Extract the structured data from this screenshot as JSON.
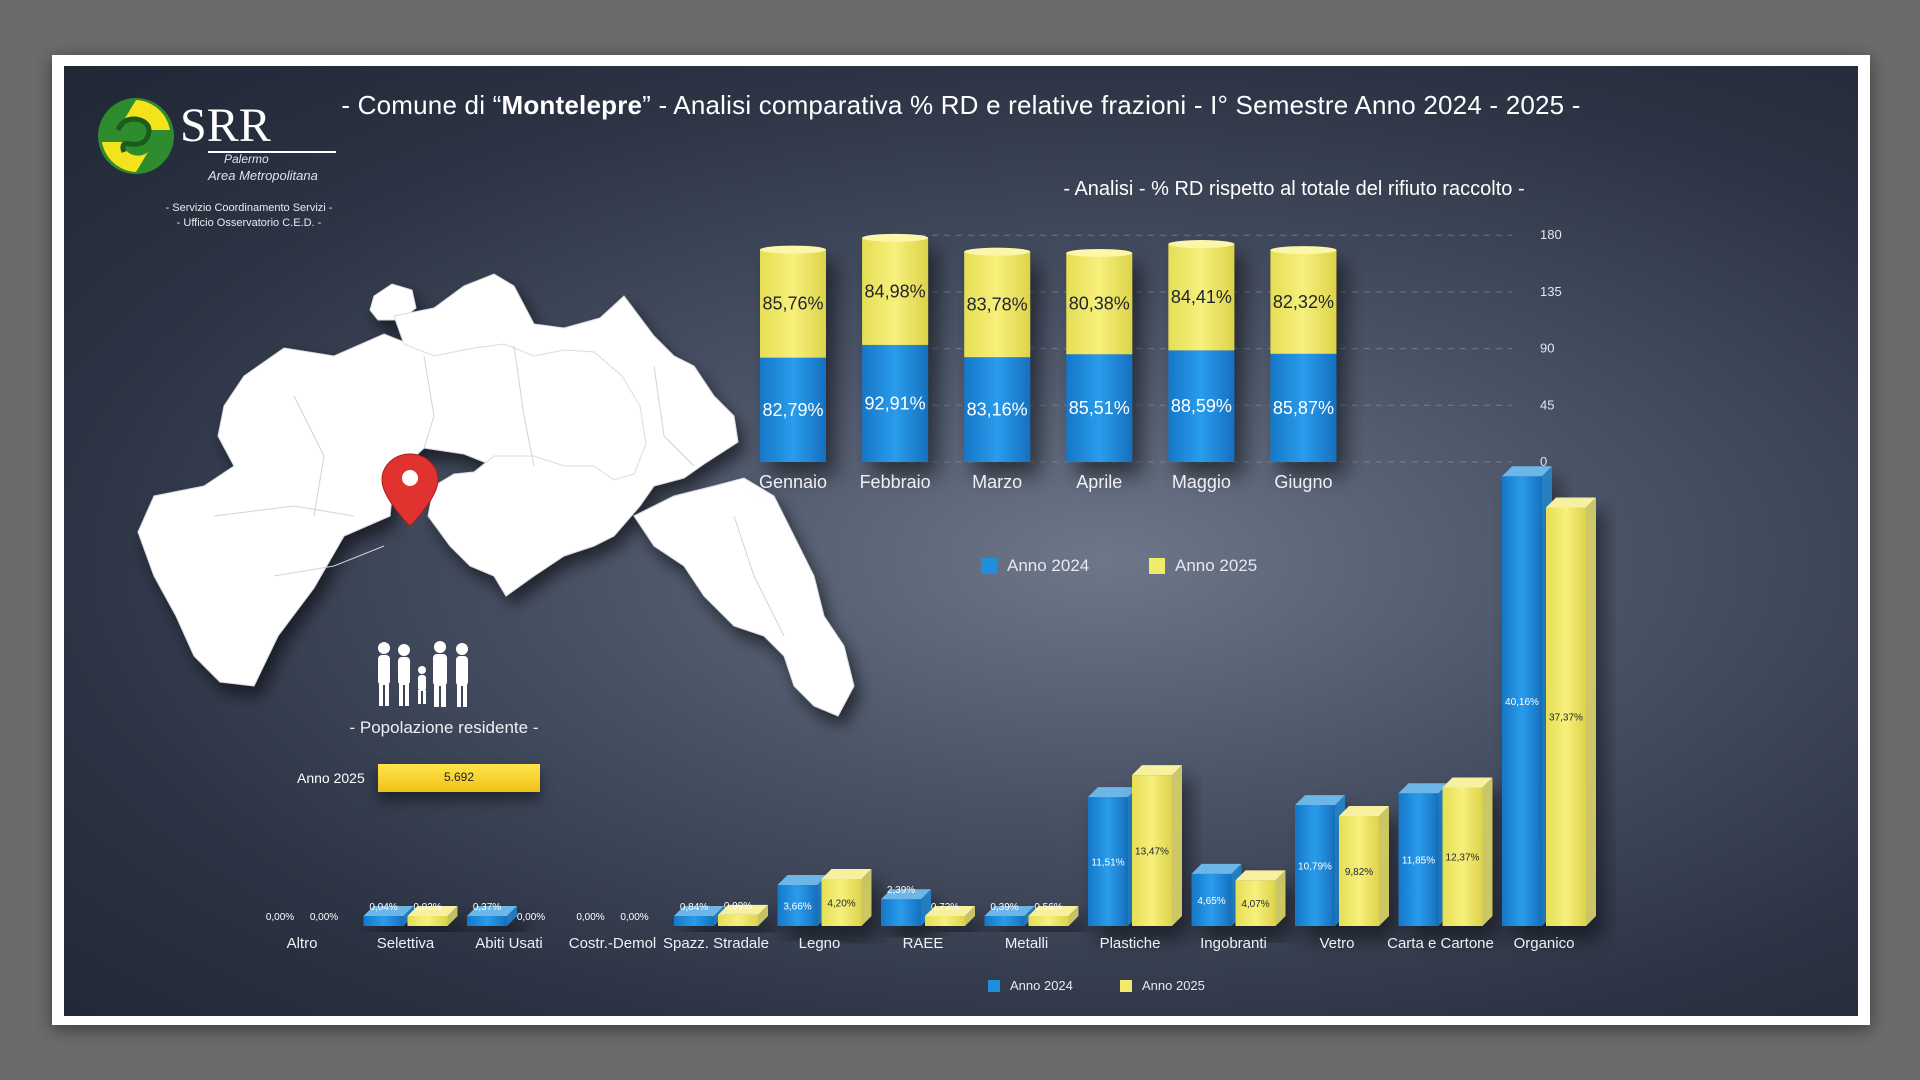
{
  "title": {
    "prefix": "- Comune di “",
    "name": "Montelepre",
    "suffix": "” - Analisi comparativa % RD e relative frazioni - I° Semestre Anno 2024 - 2025 -"
  },
  "logo": {
    "text": "SRR",
    "subtitle_1": "Palermo",
    "subtitle_2": "Area Metropolitana"
  },
  "service_lines": [
    "- Servizio Coordinamento Servizi -",
    "- Ufficio Osservatorio C.E.D. -"
  ],
  "population": {
    "label": "- Popolazione residente -",
    "year": "Anno 2025",
    "value": "5.692",
    "value_number": 5692
  },
  "colors": {
    "anno_2024": "#1f8fdc",
    "anno_2025": "#f2ea6c"
  },
  "chart_data": [
    {
      "type": "bar",
      "title": "- Analisi - % RD rispetto al totale del rifiuto raccolto -",
      "stacked": true,
      "categories": [
        "Gennaio",
        "Febbraio",
        "Marzo",
        "Aprile",
        "Maggio",
        "Giugno"
      ],
      "series": [
        {
          "name": "Anno 2024",
          "values": [
            82.79,
            92.91,
            83.16,
            85.51,
            88.59,
            85.87
          ],
          "labels": [
            "82,79%",
            "92,91%",
            "83,16%",
            "85,51%",
            "88,59%",
            "85,87%"
          ]
        },
        {
          "name": "Anno 2025",
          "values": [
            85.76,
            84.98,
            83.78,
            80.38,
            84.41,
            82.32
          ],
          "labels": [
            "85,76%",
            "84,98%",
            "83,78%",
            "80,38%",
            "84,41%",
            "82,32%"
          ]
        }
      ],
      "ylim": [
        0,
        180
      ],
      "yticks": [
        "180",
        "135",
        "90",
        "45",
        "0"
      ],
      "legend_position": "bottom"
    },
    {
      "type": "bar",
      "categories": [
        "Altro",
        "Selettiva",
        "Abiti Usati",
        "Costr.-Demol",
        "Spazz. Stradale",
        "Legno",
        "RAEE",
        "Metalli",
        "Plastiche",
        "Ingobranti",
        "Vetro",
        "Carta e Cartone",
        "Organico"
      ],
      "series": [
        {
          "name": "Anno 2024",
          "values": [
            0.0,
            0.04,
            0.37,
            0.0,
            0.84,
            3.66,
            2.39,
            0.39,
            11.51,
            4.65,
            10.79,
            11.85,
            40.16
          ],
          "labels": [
            "0,00%",
            "0,04%",
            "0,37%",
            "0,00%",
            "0,84%",
            "3,66%",
            "2,39%",
            "0,39%",
            "11,51%",
            "4,65%",
            "10,79%",
            "11,85%",
            "40,16%"
          ]
        },
        {
          "name": "Anno 2025",
          "values": [
            0.0,
            0.02,
            0.0,
            0.0,
            0.99,
            4.2,
            0.73,
            0.56,
            13.47,
            4.07,
            9.82,
            12.37,
            37.37
          ],
          "labels": [
            "0,00%",
            "0,02%",
            "0,00%",
            "0,00%",
            "0,99%",
            "4,20%",
            "0,73%",
            "0,56%",
            "13,47%",
            "4,07%",
            "9,82%",
            "12,37%",
            "37,37%"
          ]
        }
      ],
      "legend_position": "bottom"
    }
  ]
}
